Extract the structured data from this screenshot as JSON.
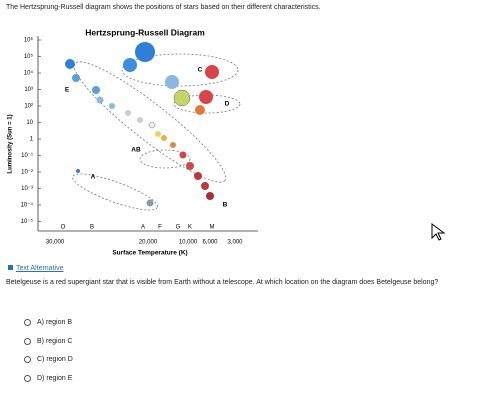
{
  "question_prompt": "The Hertzsprung-Russell diagram shows the positions of stars based on their different characteristics.",
  "diagram": {
    "title": "Hertzsprung-Russell Diagram",
    "y_axis_label": "Luminosity (Sun = 1)",
    "y_ticks": [
      "10⁶",
      "10⁵",
      "10⁴",
      "10³",
      "10²",
      "10",
      "1",
      "10⁻¹",
      "10⁻²",
      "10⁻³",
      "10⁻⁴",
      "10⁻⁵"
    ],
    "spectral_classes": [
      "O",
      "B",
      "A",
      "F",
      "G",
      "K",
      "M"
    ],
    "x_ticks": [
      "30,000",
      "20,000",
      "10,000",
      "6,000",
      "3,000"
    ],
    "x_axis_label": "Surface Temperature (K)",
    "regions": [
      "C",
      "E",
      "D",
      "AB",
      "A",
      "B"
    ]
  },
  "text_alternative": "Text Alternative",
  "question": "Betelgeuse is a red supergiant star that is visible from Earth without a telescope. At which location on the diagram does Betelgeuse belong?",
  "options": [
    "A) region B",
    "B) region C",
    "C) region D",
    "D) region E"
  ]
}
